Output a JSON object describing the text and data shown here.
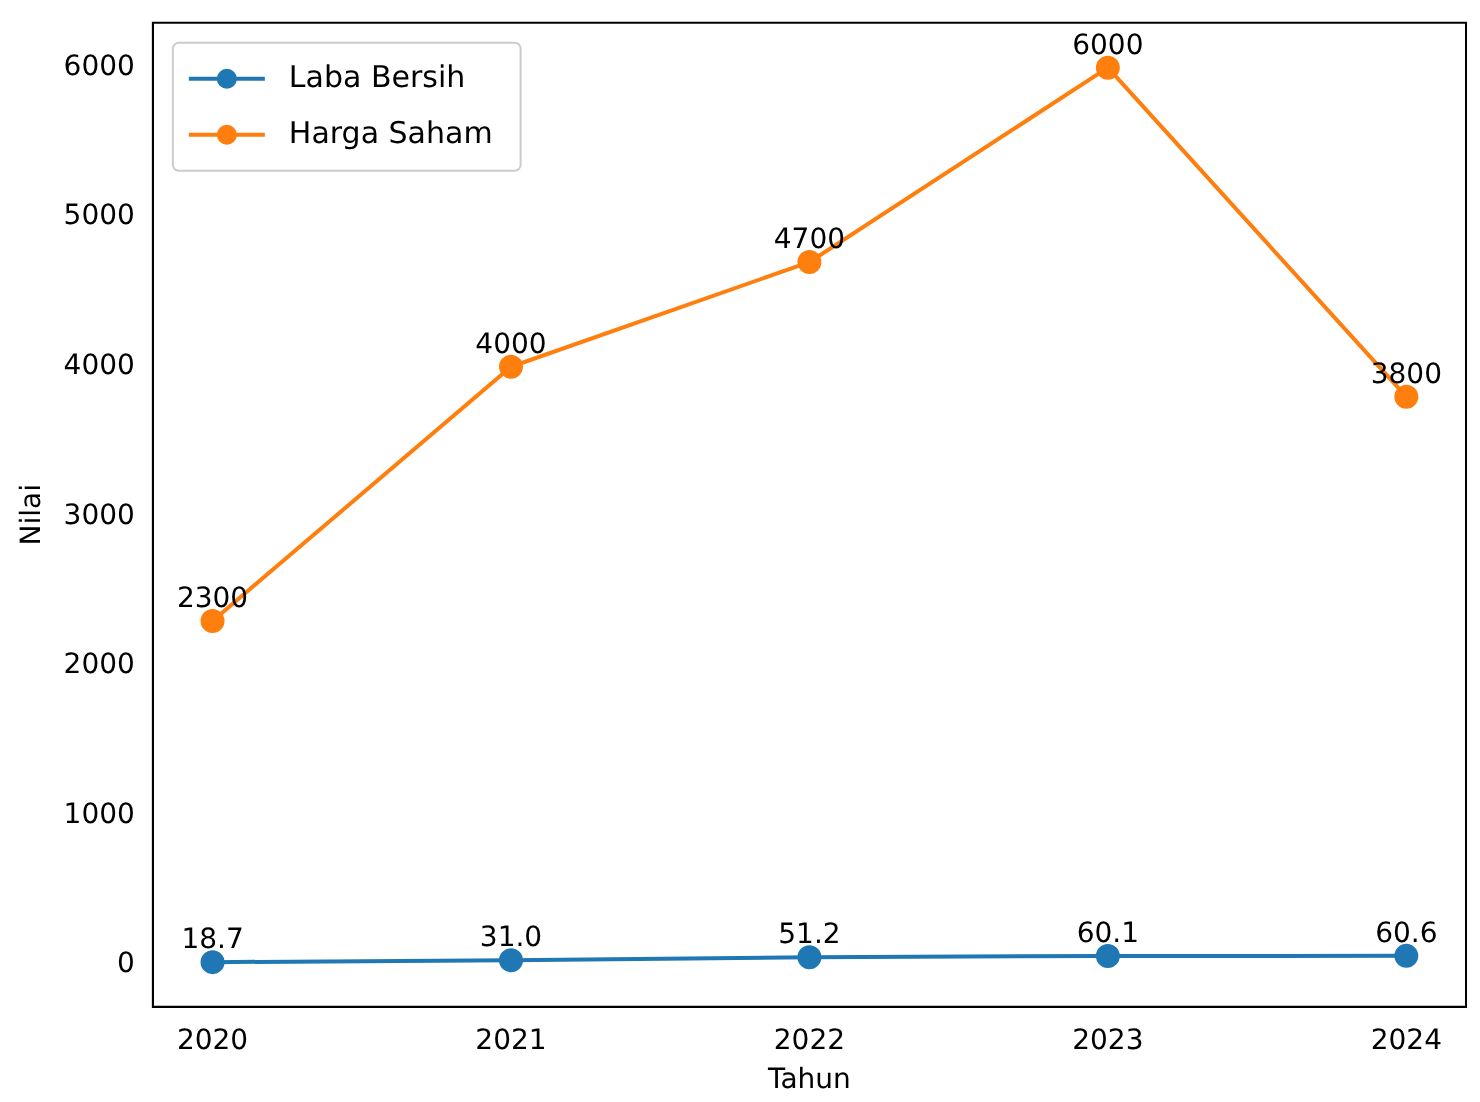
{
  "chart_data": {
    "type": "line",
    "xlabel": "Tahun",
    "ylabel": "Nilai",
    "x": [
      2020,
      2021,
      2022,
      2023,
      2024
    ],
    "xlim": [
      2019.8,
      2024.2
    ],
    "xticks": [
      2020,
      2021,
      2022,
      2023,
      2024
    ],
    "ylim": [
      -280,
      6300
    ],
    "yticks": [
      0,
      1000,
      2000,
      3000,
      4000,
      5000,
      6000
    ],
    "series": [
      {
        "name": "Laba Bersih",
        "color": "#1f77b4",
        "values": [
          18.7,
          31.0,
          51.2,
          60.1,
          60.6
        ],
        "value_labels": [
          "18.7",
          "31.0",
          "51.2",
          "60.1",
          "60.6"
        ]
      },
      {
        "name": "Harga Saham",
        "color": "#ff7f0e",
        "values": [
          2300,
          4000,
          4700,
          6000,
          3800
        ],
        "value_labels": [
          "2300",
          "4000",
          "4700",
          "6000",
          "3800"
        ]
      }
    ],
    "marker": "circle",
    "grid": false,
    "legend": "top left"
  }
}
